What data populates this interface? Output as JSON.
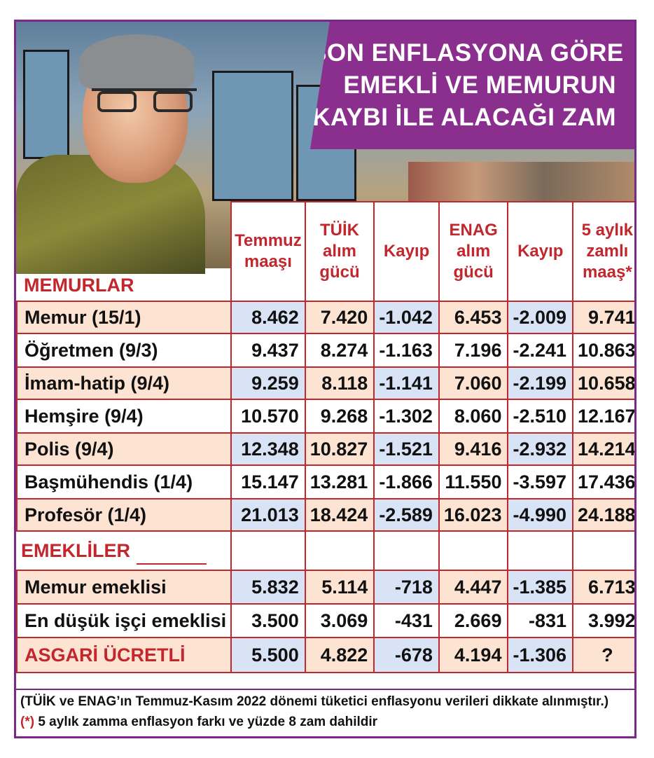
{
  "title": {
    "lines": [
      "SON ENFLASYONA GÖRE",
      "EMEKLİ VE MEMURUN",
      "KAYBI İLE ALACAĞI ZAM"
    ]
  },
  "columns": [
    "Temmuz maaşı",
    "TÜİK alım gücü",
    "Kayıp",
    "ENAG alım gücü",
    "Kayıp",
    "5 aylık zamlı maaş*"
  ],
  "sections": {
    "memurlar": "MEMURLAR",
    "emekliler": "EMEKLİLER",
    "asgari": "ASGARİ ÜCRETLİ"
  },
  "memurlar": [
    {
      "name": "Memur (15/1)",
      "values": [
        "8.462",
        "7.420",
        "-1.042",
        "6.453",
        "-2.009",
        "9.741"
      ]
    },
    {
      "name": "Öğretmen (9/3)",
      "values": [
        "9.437",
        "8.274",
        "-1.163",
        "7.196",
        "-2.241",
        "10.863"
      ]
    },
    {
      "name": "İmam-hatip (9/4)",
      "values": [
        "9.259",
        "8.118",
        "-1.141",
        "7.060",
        "-2.199",
        "10.658"
      ]
    },
    {
      "name": "Hemşire (9/4)",
      "values": [
        "10.570",
        "9.268",
        "-1.302",
        "8.060",
        "-2.510",
        "12.167"
      ]
    },
    {
      "name": "Polis (9/4)",
      "values": [
        "12.348",
        "10.827",
        "-1.521",
        "9.416",
        "-2.932",
        "14.214"
      ]
    },
    {
      "name": "Başmühendis (1/4)",
      "values": [
        "15.147",
        "13.281",
        "-1.866",
        "11.550",
        "-3.597",
        "17.436"
      ]
    },
    {
      "name": "Profesör (1/4)",
      "values": [
        "21.013",
        "18.424",
        "-2.589",
        "16.023",
        "-4.990",
        "24.188"
      ]
    }
  ],
  "emekliler": [
    {
      "name": "Memur emeklisi",
      "values": [
        "5.832",
        "5.114",
        "-718",
        "4.447",
        "-1.385",
        "6.713"
      ]
    },
    {
      "name": "En düşük işçi emeklisi",
      "values": [
        "3.500",
        "3.069",
        "-431",
        "2.669",
        "-831",
        "3.992"
      ]
    }
  ],
  "asgari_values": [
    "5.500",
    "4.822",
    "-678",
    "4.194",
    "-1.306",
    "?"
  ],
  "notes": {
    "source": "(TÜİK ve ENAG’ın Temmuz-Kasım 2022 dönemi tüketici enflasyonu verileri dikkate alınmıştır.)",
    "star_marker": "(*)",
    "star_text": " 5 aylık zamma enflasyon farkı ve yüzde 8 zam dahildir"
  }
}
